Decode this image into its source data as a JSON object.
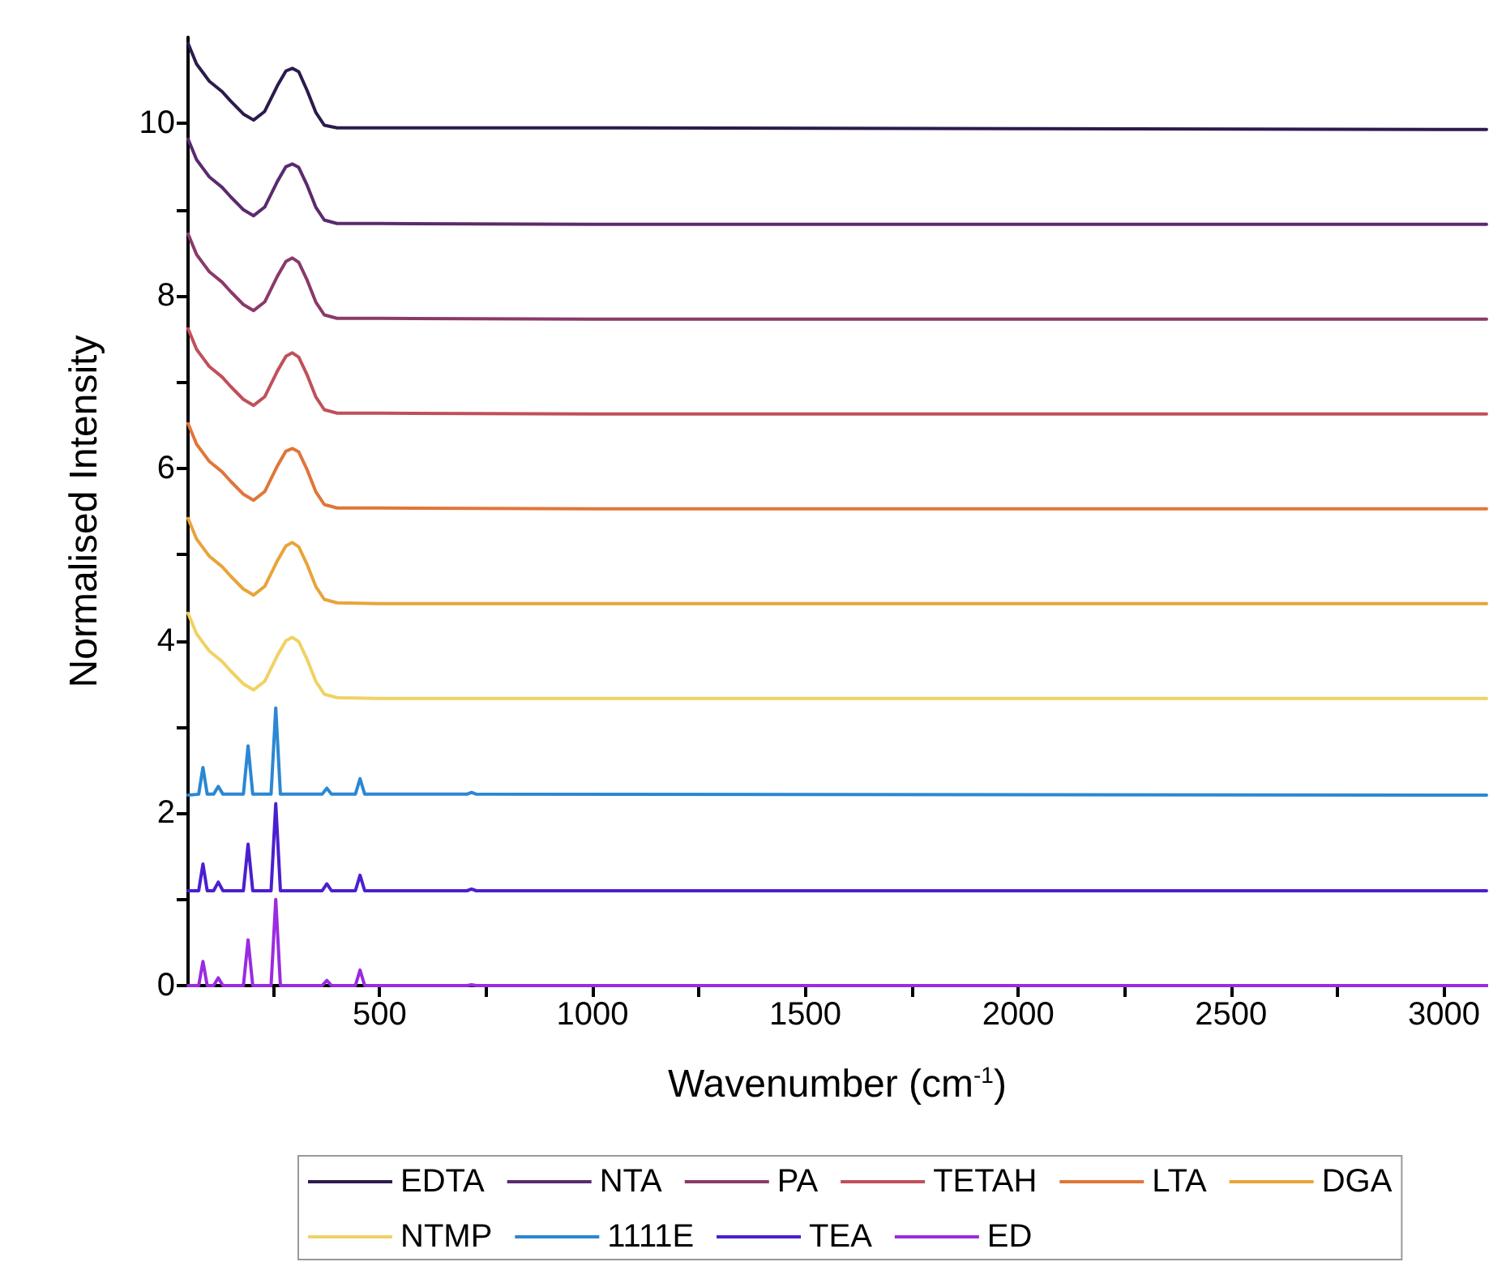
{
  "chart_data": {
    "type": "line",
    "xlabel": "Wavenumber (cm$^{-1}$)",
    "ylabel": "Normalised Intensity",
    "xlim": [
      50,
      3100
    ],
    "ylim": [
      0,
      11
    ],
    "xticks": [
      {
        "value": 250,
        "label": null
      },
      500,
      {
        "value": 750,
        "label": null
      },
      1000,
      {
        "value": 1250,
        "label": null
      },
      1500,
      {
        "value": 1750,
        "label": null
      },
      2000,
      {
        "value": 2250,
        "label": null
      },
      2500,
      {
        "value": 2750,
        "label": null
      },
      3000
    ],
    "yticks": [
      0,
      {
        "value": 1,
        "label": null
      },
      2,
      {
        "value": 3,
        "label": null
      },
      4,
      {
        "value": 5,
        "label": null
      },
      6,
      {
        "value": 7,
        "label": null
      },
      8,
      {
        "value": 9,
        "label": null
      },
      10
    ],
    "grid": false,
    "legend": "bottom",
    "marker": "none",
    "line_style": "solid",
    "series": [
      {
        "name": "EDTA",
        "color": "#2c1b4e",
        "x": [
          50,
          70,
          100,
          130,
          150,
          180,
          204,
          230,
          260,
          280,
          295,
          310,
          330,
          350,
          370,
          400,
          500,
          1000,
          2000,
          3100
        ],
        "values": [
          10.93,
          10.69,
          10.49,
          10.37,
          10.26,
          10.11,
          10.04,
          10.14,
          10.44,
          10.61,
          10.64,
          10.6,
          10.38,
          10.13,
          9.98,
          9.95,
          9.95,
          9.95,
          9.94,
          9.93
        ]
      },
      {
        "name": "NTA",
        "color": "#5b2a6e",
        "x": [
          50,
          70,
          100,
          130,
          150,
          180,
          204,
          230,
          260,
          280,
          295,
          310,
          330,
          350,
          370,
          400,
          500,
          1000,
          2000,
          3100
        ],
        "values": [
          9.82,
          9.58,
          9.38,
          9.26,
          9.15,
          9.0,
          8.93,
          9.03,
          9.33,
          9.5,
          9.53,
          9.49,
          9.28,
          9.03,
          8.88,
          8.84,
          8.84,
          8.83,
          8.83,
          8.83
        ]
      },
      {
        "name": "PA",
        "color": "#8a3a6a",
        "x": [
          50,
          70,
          100,
          130,
          150,
          180,
          204,
          230,
          260,
          280,
          295,
          310,
          330,
          350,
          370,
          400,
          500,
          1000,
          2000,
          3100
        ],
        "values": [
          8.72,
          8.48,
          8.28,
          8.16,
          8.05,
          7.9,
          7.83,
          7.93,
          8.23,
          8.4,
          8.44,
          8.39,
          8.18,
          7.93,
          7.78,
          7.74,
          7.74,
          7.73,
          7.73,
          7.73
        ]
      },
      {
        "name": "TETAH",
        "color": "#c0505a",
        "x": [
          50,
          70,
          100,
          130,
          150,
          180,
          204,
          230,
          260,
          280,
          295,
          310,
          330,
          350,
          370,
          400,
          500,
          1000,
          2000,
          3100
        ],
        "values": [
          7.62,
          7.38,
          7.18,
          7.06,
          6.95,
          6.8,
          6.73,
          6.83,
          7.13,
          7.3,
          7.34,
          7.29,
          7.08,
          6.83,
          6.68,
          6.64,
          6.64,
          6.63,
          6.63,
          6.63
        ]
      },
      {
        "name": "LTA",
        "color": "#e0763a",
        "x": [
          50,
          70,
          100,
          130,
          150,
          180,
          204,
          230,
          260,
          280,
          295,
          310,
          330,
          350,
          370,
          400,
          500,
          1000,
          2000,
          3100
        ],
        "values": [
          6.52,
          6.28,
          6.08,
          5.96,
          5.85,
          5.7,
          5.63,
          5.73,
          6.03,
          6.2,
          6.23,
          6.19,
          5.98,
          5.73,
          5.58,
          5.54,
          5.54,
          5.53,
          5.53,
          5.53
        ]
      },
      {
        "name": "DGA",
        "color": "#e8a43a",
        "x": [
          50,
          70,
          100,
          130,
          150,
          180,
          204,
          230,
          260,
          280,
          295,
          310,
          330,
          350,
          370,
          400,
          500,
          1000,
          2000,
          3100
        ],
        "values": [
          5.42,
          5.18,
          4.98,
          4.86,
          4.75,
          4.6,
          4.53,
          4.63,
          4.93,
          5.1,
          5.14,
          5.09,
          4.88,
          4.63,
          4.48,
          4.44,
          4.43,
          4.43,
          4.43,
          4.43
        ]
      },
      {
        "name": "NTMP",
        "color": "#f0d264",
        "x": [
          50,
          70,
          100,
          130,
          150,
          180,
          204,
          230,
          260,
          280,
          295,
          310,
          330,
          350,
          370,
          400,
          500,
          1000,
          2000,
          3100
        ],
        "values": [
          4.32,
          4.08,
          3.88,
          3.76,
          3.65,
          3.5,
          3.43,
          3.53,
          3.83,
          4.0,
          4.04,
          3.99,
          3.78,
          3.53,
          3.38,
          3.34,
          3.33,
          3.33,
          3.33,
          3.33
        ]
      },
      {
        "name": "1111E",
        "color": "#2b87d4",
        "x": [
          50,
          75,
          85,
          95,
          110,
          121,
          132,
          180,
          191,
          202,
          245,
          256,
          267,
          365,
          376,
          387,
          443,
          454,
          465,
          705,
          716,
          727,
          3100
        ],
        "values": [
          2.21,
          2.22,
          2.53,
          2.22,
          2.22,
          2.31,
          2.22,
          2.22,
          2.78,
          2.22,
          2.22,
          3.22,
          2.22,
          2.22,
          2.29,
          2.22,
          2.22,
          2.4,
          2.22,
          2.22,
          2.24,
          2.22,
          2.21
        ]
      },
      {
        "name": "TEA",
        "color": "#4b1fcf",
        "x": [
          50,
          75,
          85,
          95,
          110,
          121,
          132,
          180,
          191,
          202,
          245,
          256,
          267,
          365,
          376,
          387,
          443,
          454,
          465,
          705,
          716,
          727,
          3100
        ],
        "values": [
          1.1,
          1.1,
          1.41,
          1.1,
          1.1,
          1.2,
          1.1,
          1.1,
          1.64,
          1.1,
          1.1,
          2.11,
          1.1,
          1.1,
          1.18,
          1.1,
          1.1,
          1.28,
          1.1,
          1.1,
          1.12,
          1.1,
          1.1
        ]
      },
      {
        "name": "ED",
        "color": "#9a2be0",
        "x": [
          50,
          75,
          85,
          95,
          110,
          121,
          132,
          180,
          191,
          202,
          245,
          256,
          267,
          365,
          376,
          387,
          443,
          454,
          465,
          705,
          716,
          727,
          3100
        ],
        "values": [
          0,
          0,
          0.28,
          0,
          0,
          0.09,
          0,
          0,
          0.53,
          0,
          0,
          1.0,
          0,
          0,
          0.06,
          0,
          0,
          0.18,
          0,
          0,
          0.01,
          0,
          0
        ]
      }
    ]
  }
}
